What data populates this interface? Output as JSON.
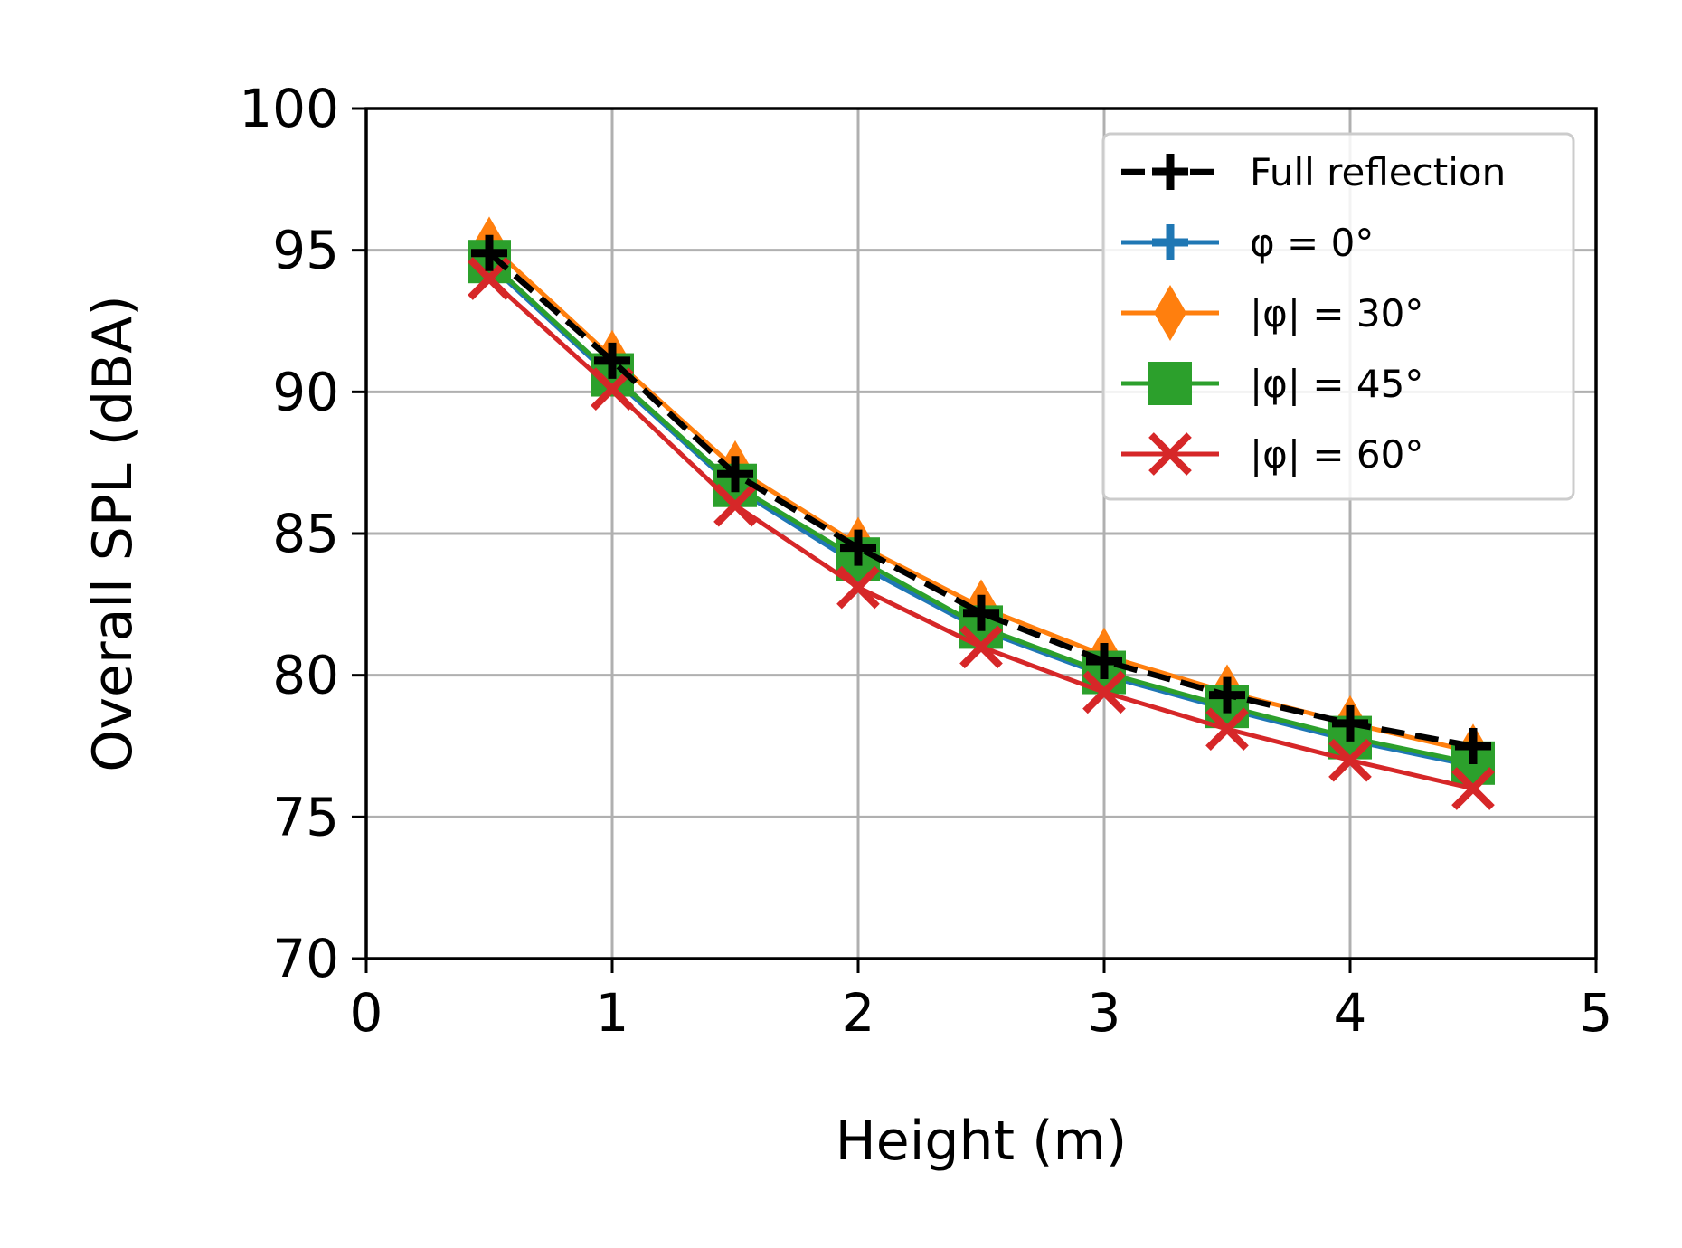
{
  "chart_data": {
    "type": "line",
    "title": "",
    "xlabel": "Height (m)",
    "ylabel": "Overall SPL (dBA)",
    "xlim": [
      0,
      5
    ],
    "ylim": [
      70,
      100
    ],
    "xticks": [
      "0",
      "1",
      "2",
      "3",
      "4",
      "5"
    ],
    "yticks": [
      "70",
      "75",
      "80",
      "85",
      "90",
      "95",
      "100"
    ],
    "grid": true,
    "legend_position": "top-right",
    "x": [
      0.5,
      1.0,
      1.5,
      2.0,
      2.5,
      3.0,
      3.5,
      4.0,
      4.5
    ],
    "series": [
      {
        "name": "Full reflection",
        "color": "#000000",
        "marker": "plus",
        "linestyle": "dashed",
        "values": [
          94.9,
          91.1,
          87.1,
          84.5,
          82.2,
          80.5,
          79.3,
          78.3,
          77.5
        ]
      },
      {
        "name": "φ = 0°",
        "color": "#1f77b4",
        "marker": "plus",
        "linestyle": "solid",
        "values": [
          94.5,
          90.5,
          86.6,
          83.9,
          81.6,
          80.0,
          78.8,
          77.7,
          76.8
        ]
      },
      {
        "name": "|φ| = 30°",
        "color": "#ff7f0e",
        "marker": "diamond",
        "linestyle": "solid",
        "values": [
          95.2,
          91.2,
          87.3,
          84.6,
          82.4,
          80.7,
          79.4,
          78.3,
          77.3
        ]
      },
      {
        "name": "|φ| = 45°",
        "color": "#2ca02c",
        "marker": "square",
        "linestyle": "solid",
        "values": [
          94.6,
          90.6,
          86.7,
          84.1,
          81.7,
          80.1,
          78.9,
          77.8,
          76.9
        ]
      },
      {
        "name": "|φ| = 60°",
        "color": "#d62728",
        "marker": "x",
        "linestyle": "solid",
        "values": [
          94.0,
          90.1,
          86.0,
          83.1,
          81.0,
          79.4,
          78.1,
          77.0,
          76.0
        ]
      }
    ]
  }
}
